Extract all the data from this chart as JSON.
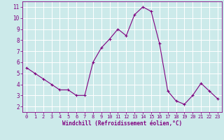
{
  "x": [
    0,
    1,
    2,
    3,
    4,
    5,
    6,
    7,
    8,
    9,
    10,
    11,
    12,
    13,
    14,
    15,
    16,
    17,
    18,
    19,
    20,
    21,
    22,
    23
  ],
  "y": [
    5.5,
    5.0,
    4.5,
    4.0,
    3.5,
    3.5,
    3.0,
    3.0,
    6.0,
    7.3,
    8.1,
    9.0,
    8.4,
    10.3,
    11.0,
    10.6,
    7.7,
    3.4,
    2.5,
    2.2,
    3.0,
    4.1,
    3.4,
    2.7
  ],
  "line_color": "#800080",
  "marker": "+",
  "marker_color": "#800080",
  "bg_color": "#cceaea",
  "grid_color": "#ffffff",
  "xlabel": "Windchill (Refroidissement éolien,°C)",
  "xlabel_color": "#800080",
  "tick_color": "#800080",
  "xlim": [
    -0.5,
    23.5
  ],
  "ylim": [
    1.5,
    11.5
  ],
  "yticks": [
    2,
    3,
    4,
    5,
    6,
    7,
    8,
    9,
    10,
    11
  ],
  "xticks": [
    0,
    1,
    2,
    3,
    4,
    5,
    6,
    7,
    8,
    9,
    10,
    11,
    12,
    13,
    14,
    15,
    16,
    17,
    18,
    19,
    20,
    21,
    22,
    23
  ],
  "figsize": [
    3.2,
    2.0
  ],
  "dpi": 100
}
